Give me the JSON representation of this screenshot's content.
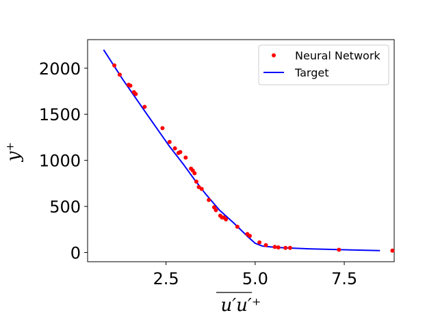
{
  "chart_data": {
    "type": "scatter",
    "xlabel": "u′u′⁺",
    "ylabel": "y⁺",
    "xlim": [
      0.3,
      8.9
    ],
    "ylim": [
      -100,
      2310
    ],
    "xticks": [
      2.5,
      5.0,
      7.5
    ],
    "xtick_labels": [
      "2.5",
      "5.0",
      "7.5"
    ],
    "yticks": [
      0,
      500,
      1000,
      1500,
      2000
    ],
    "ytick_labels": [
      "0",
      "500",
      "1000",
      "1500",
      "2000"
    ],
    "legend_position": "top-right",
    "series": [
      {
        "name": "Neural Network",
        "kind": "scatter",
        "color": "#ff0000",
        "x": [
          1.05,
          1.2,
          1.45,
          1.5,
          1.6,
          1.65,
          1.9,
          2.4,
          2.6,
          2.75,
          2.85,
          2.9,
          3.05,
          3.2,
          3.25,
          3.3,
          3.35,
          3.42,
          3.5,
          3.7,
          3.85,
          3.9,
          4.02,
          4.07,
          4.12,
          4.18,
          4.5,
          4.78,
          4.85,
          5.12,
          5.3,
          5.55,
          5.65,
          5.85,
          5.98,
          7.35,
          8.85
        ],
        "y": [
          2030,
          1930,
          1820,
          1810,
          1740,
          1720,
          1580,
          1350,
          1200,
          1130,
          1080,
          1090,
          1030,
          910,
          890,
          860,
          770,
          710,
          690,
          570,
          490,
          460,
          400,
          380,
          380,
          360,
          280,
          200,
          180,
          110,
          80,
          60,
          55,
          50,
          50,
          30,
          20
        ]
      },
      {
        "name": "Target",
        "kind": "line",
        "color": "#0000ff",
        "x": [
          0.75,
          1.3,
          2.0,
          2.6,
          3.0,
          3.3,
          3.6,
          4.0,
          4.4,
          4.8,
          5.0,
          5.2,
          5.6,
          6.5,
          7.5,
          8.5
        ],
        "y": [
          2200,
          1870,
          1480,
          1150,
          950,
          790,
          640,
          460,
          320,
          170,
          100,
          70,
          55,
          40,
          30,
          20
        ]
      }
    ]
  }
}
